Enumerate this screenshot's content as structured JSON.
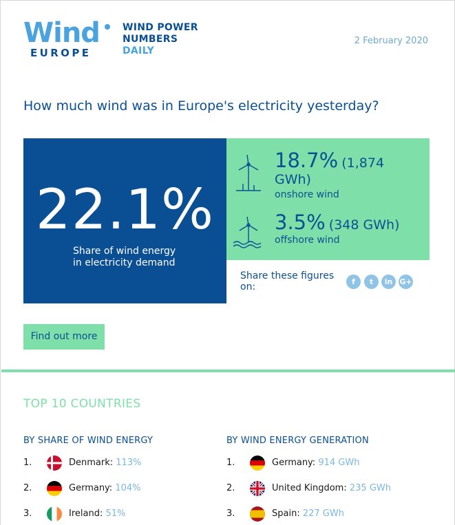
{
  "brand": {
    "logo_word": "Wind",
    "logo_sub": "EUROPE",
    "tagline_1": "WIND POWER",
    "tagline_2": "NUMBERS",
    "tagline_3": "DAILY"
  },
  "date": "2 February 2020",
  "headline": "How much wind was in Europe's electricity yesterday?",
  "share": {
    "value": "22.1%",
    "label_1": "Share of wind energy",
    "label_2": "in electricity demand"
  },
  "onshore": {
    "pct": "18.7%",
    "gwh": "(1,874 GWh)",
    "kind": "onshore wind",
    "icon": "onshore-turbine-icon"
  },
  "offshore": {
    "pct": "3.5%",
    "gwh": "(348 GWh)",
    "kind": "offshore wind",
    "icon": "offshore-turbine-icon"
  },
  "share_figures": {
    "label": "Share these figures on:",
    "networks": [
      "f",
      "t",
      "in",
      "G+"
    ]
  },
  "find_out_more": "Find out more",
  "top10": {
    "title": "TOP 10 COUNTRIES",
    "by_share_title": "BY SHARE OF WIND ENERGY",
    "by_generation_title": "BY WIND ENERGY GENERATION",
    "by_share": [
      {
        "rank": "1.",
        "country": "Denmark:",
        "value": "113%",
        "flag": "dk"
      },
      {
        "rank": "2.",
        "country": "Germany:",
        "value": "104%",
        "flag": "de"
      },
      {
        "rank": "3.",
        "country": "Ireland:",
        "value": "51%",
        "flag": "ie"
      }
    ],
    "by_generation": [
      {
        "rank": "1.",
        "country": "Germany:",
        "value": "914 GWh",
        "flag": "de"
      },
      {
        "rank": "2.",
        "country": "United Kingdom:",
        "value": "235 GWh",
        "flag": "gb"
      },
      {
        "rank": "3.",
        "country": "Spain:",
        "value": "227 GWh",
        "flag": "es"
      }
    ]
  },
  "colors": {
    "navy": "#0a4f94",
    "light_blue": "#4aa3df",
    "green": "#7ee0a8",
    "value_blue": "#7ab8e0"
  }
}
